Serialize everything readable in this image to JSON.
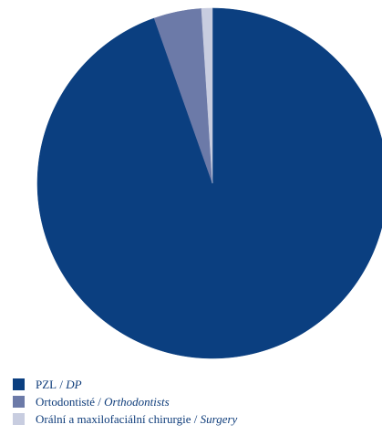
{
  "chart_data": {
    "type": "pie",
    "slices": [
      {
        "label_cs": "PZL",
        "label_en": "DP",
        "value": 94.6,
        "color": "#0b3f80"
      },
      {
        "label_cs": "Ortodontisté",
        "label_en": "Orthodontists",
        "value": 4.4,
        "color": "#6c7aa8"
      },
      {
        "label_cs": "Orální a maxilofaciální chirurgie",
        "label_en": "Surgery",
        "value": 1.0,
        "color": "#c8cde0"
      }
    ],
    "start_angle_deg": 0,
    "direction": "clockwise",
    "legend_position": "bottom-left",
    "legend_separator": " / "
  }
}
